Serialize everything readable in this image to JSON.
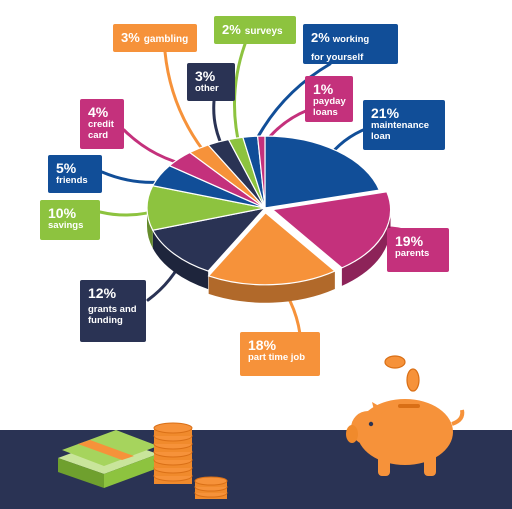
{
  "colors": {
    "navy": "#2a3354",
    "blue": "#114e98",
    "pink": "#c4317c",
    "orange": "#f6923a",
    "green": "#8dc33f"
  },
  "chart_data": {
    "type": "pie",
    "slices": [
      {
        "pct": "21%",
        "value": 21,
        "label": "maintenance\nloan",
        "color": "#114e98"
      },
      {
        "pct": "19%",
        "value": 19,
        "label": "parents",
        "color": "#c4317c"
      },
      {
        "pct": "18%",
        "value": 18,
        "label": "part time job",
        "color": "#f6923a"
      },
      {
        "pct": "12%",
        "value": 12,
        "label": "grants and\nfunding",
        "color": "#2a3354"
      },
      {
        "pct": "10%",
        "value": 10,
        "label": "savings",
        "color": "#8dc33f"
      },
      {
        "pct": "5%",
        "value": 5,
        "label": "friends",
        "color": "#114e98"
      },
      {
        "pct": "4%",
        "value": 4,
        "label": "credit\ncard",
        "color": "#c4317c"
      },
      {
        "pct": "3%",
        "value": 3,
        "label": "gambling",
        "color": "#f6923a"
      },
      {
        "pct": "3%",
        "value": 3,
        "label": "other",
        "color": "#2a3354"
      },
      {
        "pct": "2%",
        "value": 2,
        "label": "surveys",
        "color": "#8dc33f"
      },
      {
        "pct": "2%",
        "value": 2,
        "label": "working\nfor yourself",
        "color": "#114e98"
      },
      {
        "pct": "1%",
        "value": 1,
        "label": "payday\nloans",
        "color": "#c4317c"
      }
    ]
  },
  "illustration": {
    "items": [
      "banknote-bundle-icon",
      "coin-stack-icon",
      "piggy-bank-icon",
      "falling-coins-icon"
    ]
  }
}
